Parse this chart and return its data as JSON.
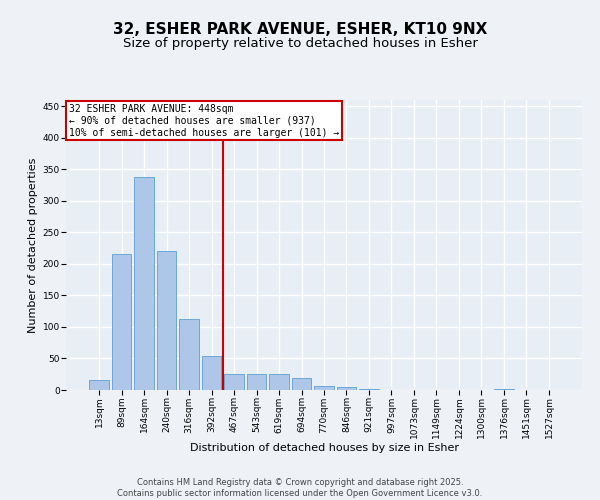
{
  "title_line1": "32, ESHER PARK AVENUE, ESHER, KT10 9NX",
  "title_line2": "Size of property relative to detached houses in Esher",
  "xlabel": "Distribution of detached houses by size in Esher",
  "ylabel": "Number of detached properties",
  "categories": [
    "13sqm",
    "89sqm",
    "164sqm",
    "240sqm",
    "316sqm",
    "392sqm",
    "467sqm",
    "543sqm",
    "619sqm",
    "694sqm",
    "770sqm",
    "846sqm",
    "921sqm",
    "997sqm",
    "1073sqm",
    "1149sqm",
    "1224sqm",
    "1300sqm",
    "1376sqm",
    "1451sqm",
    "1527sqm"
  ],
  "values": [
    16,
    216,
    338,
    221,
    113,
    54,
    26,
    26,
    26,
    19,
    7,
    5,
    1,
    0,
    0,
    0,
    0,
    0,
    1,
    0,
    0
  ],
  "bar_color": "#aec6e8",
  "bar_edge_color": "#5a9fd4",
  "vline_x": 5.5,
  "vline_color": "#cc0000",
  "annotation_text": "32 ESHER PARK AVENUE: 448sqm\n← 90% of detached houses are smaller (937)\n10% of semi-detached houses are larger (101) →",
  "annotation_box_color": "#ffffff",
  "annotation_box_edge_color": "#cc0000",
  "ylim": [
    0,
    460
  ],
  "yticks": [
    0,
    50,
    100,
    150,
    200,
    250,
    300,
    350,
    400,
    450
  ],
  "background_color": "#e8eef5",
  "grid_color": "#ffffff",
  "footer_text": "Contains HM Land Registry data © Crown copyright and database right 2025.\nContains public sector information licensed under the Open Government Licence v3.0.",
  "title_fontsize": 11,
  "subtitle_fontsize": 9.5,
  "label_fontsize": 8,
  "tick_fontsize": 6.5,
  "footer_fontsize": 6,
  "fig_bg_color": "#eef2f7"
}
